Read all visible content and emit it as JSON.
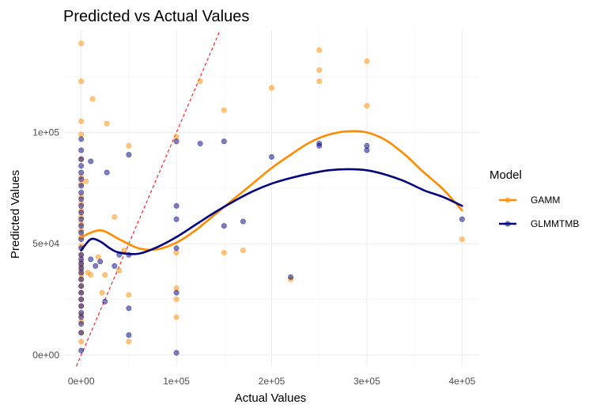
{
  "chart_data": {
    "type": "scatter",
    "title": "Predicted vs Actual Values",
    "xlabel": "Actual Values",
    "ylabel": "Predicted Values",
    "xlim": [
      -18000,
      418000
    ],
    "ylim": [
      -5000,
      146000
    ],
    "x_ticks": [
      0,
      100000,
      200000,
      300000,
      400000
    ],
    "x_tick_labels": [
      "0e+00",
      "1e+05",
      "2e+05",
      "3e+05",
      "4e+05"
    ],
    "y_ticks": [
      0,
      50000,
      100000
    ],
    "y_tick_labels": [
      "0e+00",
      "5e+04",
      "1e+05"
    ],
    "grid": true,
    "legend": {
      "title": "Model",
      "position": "right"
    },
    "reference_line": {
      "type": "y=x",
      "color": "#ff0000",
      "style": "dashed"
    },
    "series": [
      {
        "name": "GAMM",
        "color": "#ff8c00",
        "points": [
          [
            0,
            140000
          ],
          [
            0,
            123000
          ],
          [
            0,
            105000
          ],
          [
            0,
            99000
          ],
          [
            0,
            88000
          ],
          [
            0,
            80000
          ],
          [
            0,
            77000
          ],
          [
            0,
            71000
          ],
          [
            0,
            68000
          ],
          [
            0,
            65000
          ],
          [
            0,
            62000
          ],
          [
            0,
            59000
          ],
          [
            0,
            56000
          ],
          [
            0,
            53000
          ],
          [
            0,
            49000
          ],
          [
            0,
            45000
          ],
          [
            0,
            42000
          ],
          [
            0,
            40000
          ],
          [
            0,
            38000
          ],
          [
            0,
            36000
          ],
          [
            0,
            34000
          ],
          [
            0,
            31000
          ],
          [
            0,
            28000
          ],
          [
            0,
            25000
          ],
          [
            0,
            22000
          ],
          [
            0,
            18000
          ],
          [
            0,
            15000
          ],
          [
            0,
            10000
          ],
          [
            0,
            6000
          ],
          [
            5000,
            78000
          ],
          [
            7000,
            37000
          ],
          [
            10000,
            36000
          ],
          [
            12000,
            115000
          ],
          [
            18000,
            44000
          ],
          [
            22000,
            28000
          ],
          [
            25000,
            36000
          ],
          [
            27000,
            104000
          ],
          [
            35000,
            62000
          ],
          [
            40000,
            38000
          ],
          [
            45000,
            47000
          ],
          [
            50000,
            94000
          ],
          [
            50000,
            27000
          ],
          [
            50000,
            6000
          ],
          [
            100000,
            98000
          ],
          [
            100000,
            30000
          ],
          [
            100000,
            25000
          ],
          [
            100000,
            17000
          ],
          [
            100000,
            46000
          ],
          [
            125000,
            123000
          ],
          [
            150000,
            110000
          ],
          [
            150000,
            46000
          ],
          [
            170000,
            47000
          ],
          [
            200000,
            120000
          ],
          [
            220000,
            34000
          ],
          [
            250000,
            137000
          ],
          [
            250000,
            128000
          ],
          [
            250000,
            123000
          ],
          [
            300000,
            132000
          ],
          [
            300000,
            112000
          ],
          [
            400000,
            52000
          ]
        ],
        "smooth": [
          [
            0,
            53000
          ],
          [
            20000,
            56000
          ],
          [
            40000,
            52000
          ],
          [
            60000,
            48000
          ],
          [
            80000,
            47500
          ],
          [
            100000,
            50500
          ],
          [
            120000,
            56000
          ],
          [
            140000,
            63000
          ],
          [
            160000,
            70000
          ],
          [
            180000,
            77000
          ],
          [
            200000,
            84000
          ],
          [
            220000,
            90000
          ],
          [
            240000,
            95500
          ],
          [
            260000,
            99000
          ],
          [
            280000,
            100500
          ],
          [
            300000,
            100000
          ],
          [
            320000,
            96500
          ],
          [
            340000,
            90000
          ],
          [
            360000,
            82000
          ],
          [
            380000,
            74500
          ],
          [
            400000,
            65000
          ]
        ]
      },
      {
        "name": "GLMMTMB",
        "color": "#000080",
        "points": [
          [
            0,
            97000
          ],
          [
            0,
            92000
          ],
          [
            0,
            88000
          ],
          [
            0,
            85000
          ],
          [
            0,
            82000
          ],
          [
            0,
            79000
          ],
          [
            0,
            76000
          ],
          [
            0,
            73000
          ],
          [
            0,
            70000
          ],
          [
            0,
            67000
          ],
          [
            0,
            64000
          ],
          [
            0,
            61000
          ],
          [
            0,
            58000
          ],
          [
            0,
            55000
          ],
          [
            0,
            52000
          ],
          [
            0,
            48000
          ],
          [
            0,
            45000
          ],
          [
            0,
            43000
          ],
          [
            0,
            41000
          ],
          [
            0,
            39000
          ],
          [
            0,
            37000
          ],
          [
            0,
            34000
          ],
          [
            0,
            31000
          ],
          [
            0,
            28000
          ],
          [
            0,
            25000
          ],
          [
            0,
            22000
          ],
          [
            0,
            19000
          ],
          [
            0,
            17000
          ],
          [
            0,
            14000
          ],
          [
            0,
            10000
          ],
          [
            0,
            2000
          ],
          [
            10000,
            87000
          ],
          [
            10000,
            43000
          ],
          [
            15000,
            40000
          ],
          [
            20000,
            42000
          ],
          [
            25000,
            24000
          ],
          [
            27000,
            82000
          ],
          [
            35000,
            40000
          ],
          [
            40000,
            45000
          ],
          [
            50000,
            90000
          ],
          [
            50000,
            45000
          ],
          [
            50000,
            21000
          ],
          [
            50000,
            9000
          ],
          [
            100000,
            96000
          ],
          [
            100000,
            67000
          ],
          [
            100000,
            61000
          ],
          [
            100000,
            48000
          ],
          [
            100000,
            28000
          ],
          [
            100000,
            1000
          ],
          [
            125000,
            95000
          ],
          [
            150000,
            96000
          ],
          [
            150000,
            58000
          ],
          [
            170000,
            60000
          ],
          [
            200000,
            89000
          ],
          [
            220000,
            35000
          ],
          [
            250000,
            95000
          ],
          [
            250000,
            94000
          ],
          [
            300000,
            94000
          ],
          [
            300000,
            92000
          ],
          [
            400000,
            61000
          ]
        ],
        "smooth": [
          [
            0,
            47000
          ],
          [
            10000,
            52000
          ],
          [
            20000,
            51000
          ],
          [
            30000,
            48000
          ],
          [
            40000,
            46000
          ],
          [
            60000,
            45500
          ],
          [
            80000,
            48500
          ],
          [
            100000,
            53000
          ],
          [
            120000,
            58500
          ],
          [
            140000,
            64000
          ],
          [
            160000,
            69000
          ],
          [
            180000,
            73500
          ],
          [
            200000,
            77000
          ],
          [
            220000,
            79500
          ],
          [
            240000,
            81500
          ],
          [
            260000,
            83000
          ],
          [
            280000,
            83500
          ],
          [
            300000,
            83000
          ],
          [
            320000,
            81000
          ],
          [
            340000,
            78000
          ],
          [
            360000,
            74000
          ],
          [
            380000,
            71000
          ],
          [
            400000,
            67000
          ]
        ]
      }
    ]
  }
}
